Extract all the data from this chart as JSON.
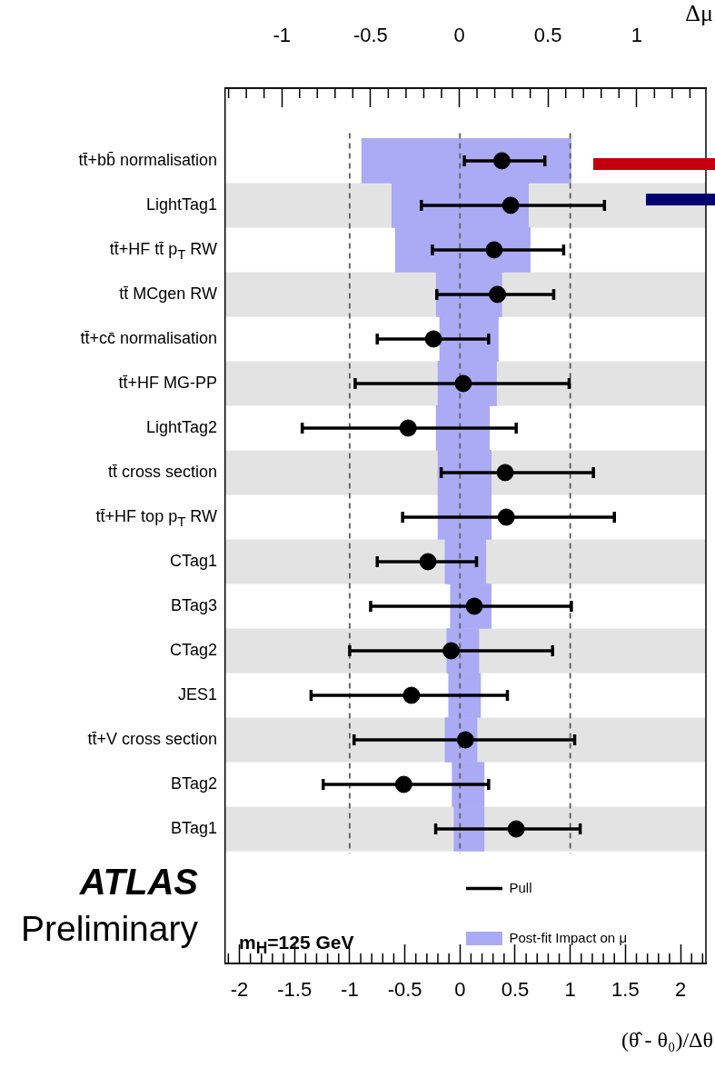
{
  "chart_data": {
    "type": "bar",
    "orientation": "horizontal",
    "categories": [
      "tt̄+bb̄ normalisation",
      "LightTag1",
      "tt̄+HF tt̄ p$_{T}$ RW",
      "tt̄ MCgen RW",
      "tt̄+cc̄ normalisation",
      "tt̄+HF MG-PP",
      "LightTag2",
      "tt̄ cross section",
      "tt̄+HF top p$_{T}$ RW",
      "CTag1",
      "BTag3",
      "CTag2",
      "JES1",
      "tt̄+V cross section",
      "BTag2",
      "BTag1"
    ],
    "series": [
      {
        "name": "Post-fit Impact on μ",
        "axis": "x2",
        "color": "#aaaaf5",
        "base": [
          -0.55,
          -0.38,
          -0.36,
          -0.13,
          -0.11,
          -0.12,
          -0.13,
          -0.12,
          -0.12,
          -0.08,
          -0.05,
          -0.07,
          -0.06,
          -0.08,
          -0.04,
          -0.03
        ],
        "values": [
          1.18,
          0.77,
          0.76,
          0.37,
          0.33,
          0.33,
          0.3,
          0.3,
          0.3,
          0.23,
          0.23,
          0.18,
          0.18,
          0.18,
          0.18,
          0.17
        ]
      },
      {
        "name": "Pull",
        "type": "scatter",
        "color": "#000000",
        "values": [
          0.38,
          0.46,
          0.31,
          0.34,
          -0.24,
          0.03,
          -0.47,
          0.41,
          0.42,
          -0.29,
          0.13,
          -0.08,
          -0.44,
          0.05,
          -0.51,
          0.51
        ],
        "errors": [
          [
            0.04,
            0.77
          ],
          [
            -0.35,
            1.31
          ],
          [
            -0.25,
            0.94
          ],
          [
            -0.21,
            0.85
          ],
          [
            -0.75,
            0.26
          ],
          [
            -0.95,
            0.99
          ],
          [
            -1.43,
            0.51
          ],
          [
            -0.17,
            1.21
          ],
          [
            -0.52,
            1.4
          ],
          [
            -0.75,
            0.15
          ],
          [
            -0.81,
            1.01
          ],
          [
            -1.0,
            0.84
          ],
          [
            -1.35,
            0.43
          ],
          [
            -0.96,
            1.04
          ],
          [
            -1.24,
            0.26
          ],
          [
            -0.22,
            1.09
          ]
        ]
      }
    ],
    "xlim": [
      -2.13,
      2.23
    ],
    "xticks": [
      -2,
      -1.5,
      -1,
      -0.5,
      0,
      0.5,
      1,
      1.5,
      2
    ],
    "x2lim": [
      -1.32,
      1.39
    ],
    "x2ticks": [
      -1,
      -0.5,
      0,
      0.5,
      1
    ],
    "xlabel": "(θ̂ - θ₀)/Δθ",
    "x2label": "Δμ",
    "ref_lines": [
      {
        "axis": "x",
        "value": -1,
        "line_style": "dashed",
        "color": "#666666"
      },
      {
        "axis": "x",
        "value": 0,
        "line_style": "dashed",
        "color": "#666666"
      },
      {
        "axis": "x",
        "value": 1,
        "line_style": "dashed",
        "color": "#666666"
      }
    ],
    "legend": "bottom right",
    "marker": "circle",
    "annotations": [
      "ATLAS",
      "Preliminary",
      "m$_{H}$=125 GeV"
    ]
  }
}
